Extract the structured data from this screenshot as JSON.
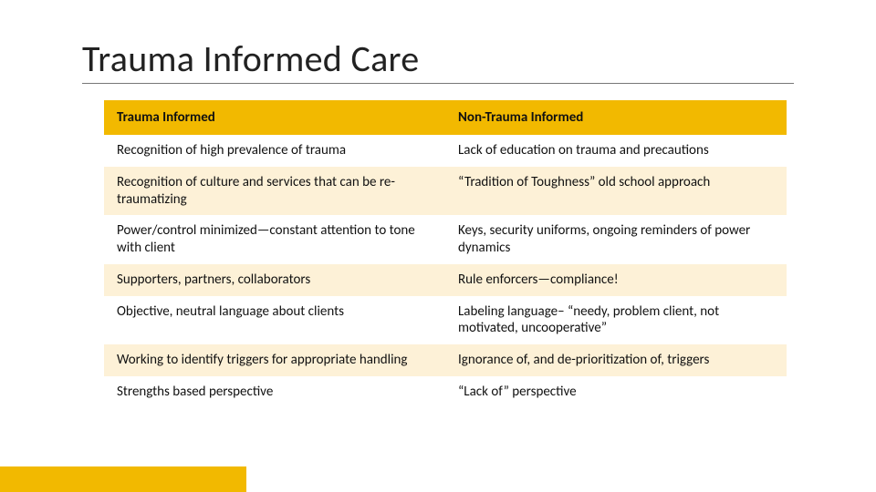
{
  "title": "Trauma Informed Care",
  "table": {
    "type": "table",
    "header_bg": "#f2b900",
    "row_alt_bg": "#fdf1d7",
    "row_bg": "#ffffff",
    "text_color": "#111111",
    "title_fontsize": 40,
    "cell_fontsize": 15,
    "columns": [
      "Trauma Informed",
      "Non-Trauma Informed"
    ],
    "rows": [
      [
        "Recognition of high prevalence of trauma",
        "Lack of education on trauma and precautions"
      ],
      [
        "Recognition of culture and services that can be re-traumatizing",
        "“Tradition of Toughness” old school approach"
      ],
      [
        "Power/control minimized—constant attention to tone with client",
        "Keys, security uniforms, ongoing reminders of power dynamics"
      ],
      [
        "Supporters, partners, collaborators",
        "Rule enforcers—compliance!"
      ],
      [
        "Objective, neutral language about clients",
        "Labeling language– “needy, problem client, not motivated, uncooperative”"
      ],
      [
        "Working to identify triggers for appropriate handling",
        "Ignorance of, and de-prioritization of, triggers"
      ],
      [
        "Strengths based perspective",
        "“Lack of” perspective"
      ]
    ]
  },
  "footer_bar_color": "#f2b900"
}
